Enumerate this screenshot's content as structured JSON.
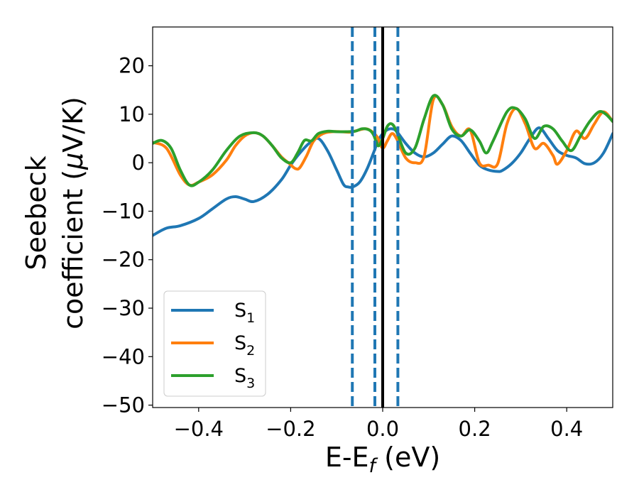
{
  "chart_data": {
    "type": "line",
    "title": "",
    "xlabel": {
      "base": "E-E",
      "sub": "f",
      "tail": " (eV)"
    },
    "ylabel": {
      "line1": "Seebeck",
      "line2_prefix": "coefficient  (",
      "mu": "μ",
      "line2_suffix": "V/K)"
    },
    "xlim": [
      -0.5,
      0.5
    ],
    "ylim": [
      -50.5,
      28
    ],
    "xticks": [
      {
        "value": -0.4,
        "label": "−0.4"
      },
      {
        "value": -0.2,
        "label": "−0.2"
      },
      {
        "value": 0.0,
        "label": "0.0"
      },
      {
        "value": 0.2,
        "label": "0.2"
      },
      {
        "value": 0.4,
        "label": "0.4"
      }
    ],
    "yticks": [
      {
        "value": 20,
        "label": "20"
      },
      {
        "value": 10,
        "label": "10"
      },
      {
        "value": 0,
        "label": "0"
      },
      {
        "value": -10,
        "label": "−10"
      },
      {
        "value": -20,
        "label": "−20"
      },
      {
        "value": -30,
        "label": "−30"
      },
      {
        "value": -40,
        "label": "−40"
      },
      {
        "value": -50,
        "label": "−50"
      }
    ],
    "legend_position": "lower-left",
    "vlines": [
      {
        "x": -0.066,
        "style": "dashed",
        "color": "#1f77b4"
      },
      {
        "x": -0.017,
        "style": "dashed",
        "color": "#1f77b4"
      },
      {
        "x": 0.0,
        "style": "solid",
        "color": "#000000"
      },
      {
        "x": 0.033,
        "style": "dashed",
        "color": "#1f77b4"
      }
    ],
    "series": [
      {
        "name": "S",
        "sub": "1",
        "color": "#1f77b4",
        "x": [
          -0.5,
          -0.47,
          -0.44,
          -0.4,
          -0.37,
          -0.34,
          -0.32,
          -0.3,
          -0.28,
          -0.25,
          -0.22,
          -0.2,
          -0.18,
          -0.16,
          -0.14,
          -0.12,
          -0.1,
          -0.085,
          -0.075,
          -0.065,
          -0.05,
          -0.035,
          -0.02,
          -0.01,
          0.0,
          0.01,
          0.02,
          0.03,
          0.05,
          0.07,
          0.09,
          0.11,
          0.13,
          0.15,
          0.17,
          0.19,
          0.21,
          0.23,
          0.25,
          0.26,
          0.28,
          0.3,
          0.32,
          0.34,
          0.36,
          0.38,
          0.4,
          0.42,
          0.44,
          0.46,
          0.48,
          0.5
        ],
        "y": [
          -15,
          -13.5,
          -13,
          -11.5,
          -9.5,
          -7.5,
          -7,
          -7.5,
          -8,
          -6.5,
          -3.5,
          -0.5,
          2,
          4,
          5,
          2.5,
          -1.5,
          -4.5,
          -5,
          -5,
          -4,
          -1.5,
          2,
          4.5,
          6,
          6.8,
          7,
          6.5,
          4,
          2,
          1.2,
          2,
          3.8,
          5.5,
          4.6,
          2,
          -0.5,
          -1.5,
          -1.8,
          -1.6,
          -0.2,
          2,
          5,
          7.2,
          5,
          2.5,
          1.5,
          1,
          -0.2,
          0,
          2,
          6
        ]
      },
      {
        "name": "S",
        "sub": "2",
        "color": "#ff7f0e",
        "x": [
          -0.5,
          -0.47,
          -0.44,
          -0.42,
          -0.4,
          -0.37,
          -0.34,
          -0.32,
          -0.3,
          -0.28,
          -0.26,
          -0.24,
          -0.22,
          -0.205,
          -0.19,
          -0.18,
          -0.165,
          -0.15,
          -0.13,
          -0.11,
          -0.09,
          -0.07,
          -0.05,
          -0.035,
          -0.02,
          -0.01,
          0.0,
          0.01,
          0.02,
          0.03,
          0.05,
          0.07,
          0.09,
          0.11,
          0.13,
          0.15,
          0.17,
          0.19,
          0.21,
          0.23,
          0.25,
          0.27,
          0.29,
          0.31,
          0.33,
          0.35,
          0.37,
          0.38,
          0.4,
          0.42,
          0.44,
          0.46,
          0.48,
          0.5
        ],
        "y": [
          4.2,
          3,
          -2.5,
          -4.6,
          -4,
          -2.5,
          0.5,
          3.5,
          5.5,
          6.2,
          5.5,
          3.5,
          1.2,
          0,
          -1.2,
          -1,
          1.5,
          4.5,
          6,
          6.4,
          6.4,
          6.3,
          6.8,
          7,
          6.2,
          5,
          3,
          4.5,
          6,
          5,
          1,
          0,
          1.3,
          13,
          12,
          7.5,
          5.5,
          6.8,
          0,
          -0.5,
          -0.2,
          8,
          11.2,
          8,
          3,
          4,
          1.5,
          -0.3,
          2.5,
          6.5,
          5,
          8,
          10.5,
          8.5
        ]
      },
      {
        "name": "S",
        "sub": "3",
        "color": "#2ca02c",
        "x": [
          -0.5,
          -0.48,
          -0.46,
          -0.44,
          -0.42,
          -0.4,
          -0.37,
          -0.34,
          -0.31,
          -0.28,
          -0.26,
          -0.24,
          -0.22,
          -0.2,
          -0.185,
          -0.17,
          -0.155,
          -0.14,
          -0.12,
          -0.1,
          -0.08,
          -0.06,
          -0.045,
          -0.03,
          -0.02,
          -0.01,
          0.0,
          0.01,
          0.02,
          0.03,
          0.05,
          0.07,
          0.09,
          0.11,
          0.13,
          0.15,
          0.17,
          0.19,
          0.21,
          0.225,
          0.24,
          0.27,
          0.29,
          0.31,
          0.33,
          0.35,
          0.37,
          0.39,
          0.41,
          0.43,
          0.45,
          0.47,
          0.485,
          0.5
        ],
        "y": [
          4,
          4.6,
          3,
          -1.5,
          -4.6,
          -4,
          -1.5,
          2.5,
          5.5,
          6.2,
          5.5,
          3.5,
          1,
          0,
          2,
          4.6,
          4.5,
          6,
          6.5,
          6.4,
          6.4,
          6.5,
          7,
          6.8,
          5.8,
          3.5,
          5,
          7.5,
          8,
          6.5,
          2,
          3,
          9,
          13.8,
          12,
          7,
          5.5,
          6.8,
          4.5,
          2,
          4.5,
          10.5,
          11.2,
          9,
          5,
          7.5,
          7,
          4.5,
          2.5,
          5.5,
          8.5,
          10.5,
          10,
          8.5
        ]
      }
    ]
  }
}
